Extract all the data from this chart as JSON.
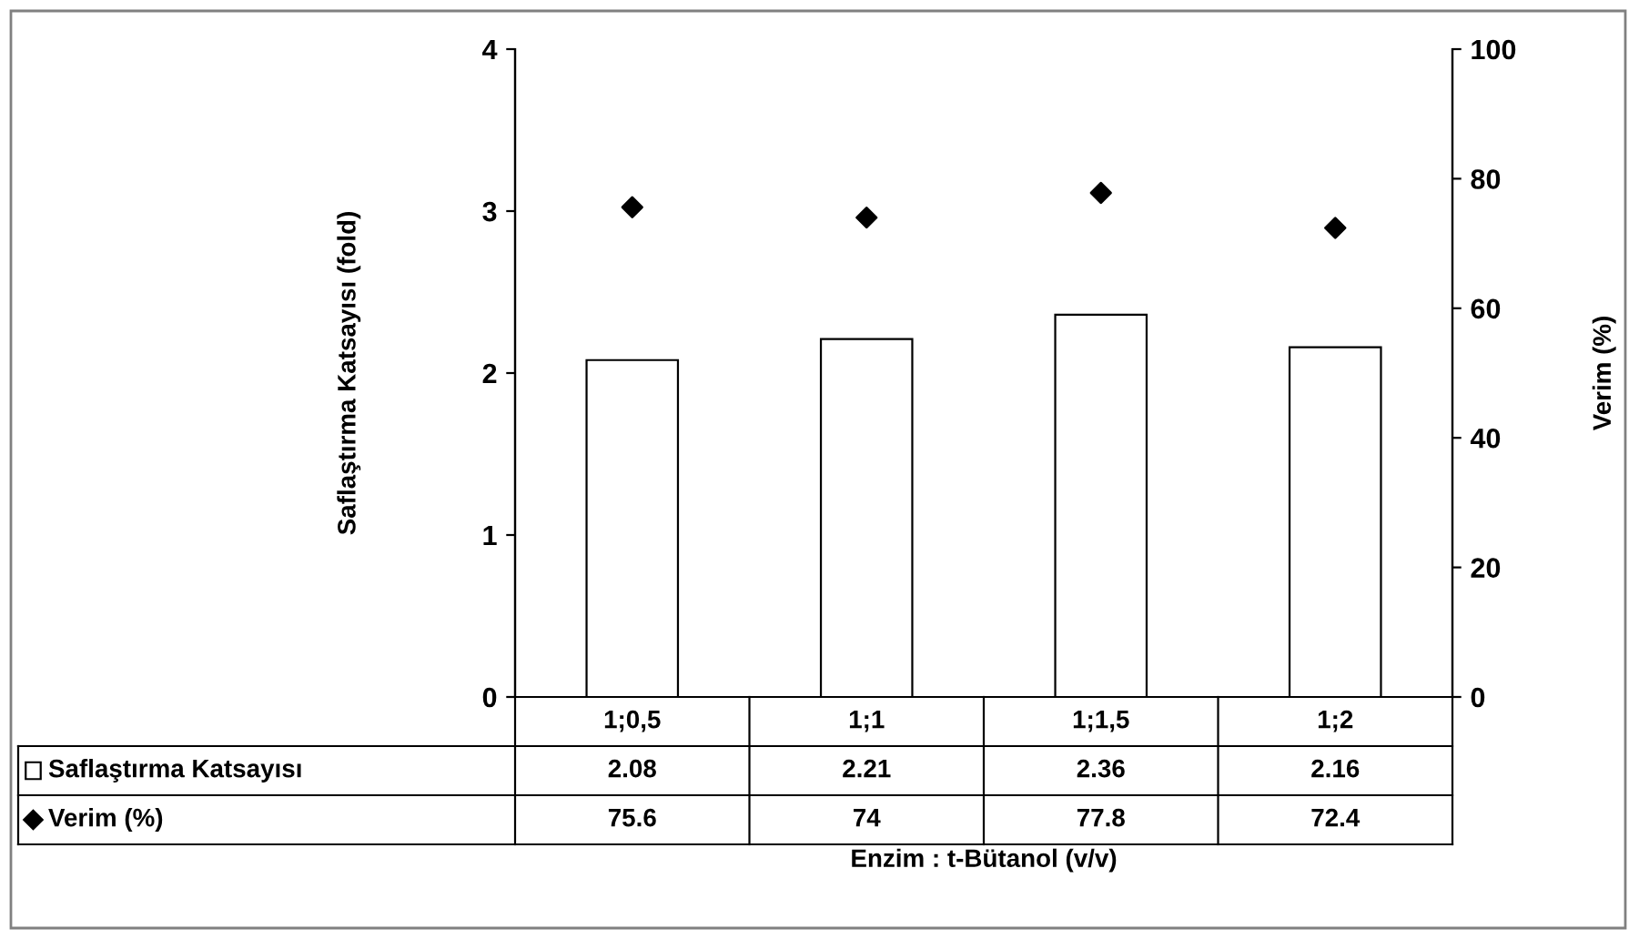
{
  "chart_data": {
    "type": "bar",
    "categories": [
      "1;0,5",
      "1;1",
      "1;1,5",
      "1;2"
    ],
    "series": [
      {
        "name": "Saflaştırma Katsayısı",
        "color": "#ffffff",
        "values": [
          2.08,
          2.21,
          2.36,
          2.16
        ]
      },
      {
        "name": "Verim (%)",
        "type": "scatter",
        "axis": "y2",
        "color": "#000000",
        "marker": "diamond",
        "values": [
          75.6,
          74,
          77.8,
          72.4
        ]
      }
    ],
    "ylim": [
      0,
      4
    ],
    "yticks": [
      0,
      1,
      2,
      3,
      4
    ],
    "y2lim": [
      0,
      100
    ],
    "y2ticks": [
      0,
      20,
      40,
      60,
      80,
      100
    ],
    "ylabel": "Saflaştırma Katsayısı (fold)",
    "y2label": "Verim (%)",
    "xlabel": "Enzim : t-Bütanol (v/v)",
    "data_labels": true,
    "legend": "bottom left",
    "grid": false
  }
}
